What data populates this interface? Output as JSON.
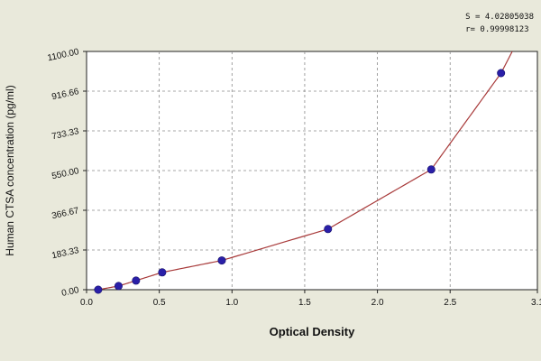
{
  "chart_data": {
    "type": "scatter",
    "xlabel": "Optical Density",
    "ylabel": "Human  CTSA concentration (pg/ml)",
    "xlim": [
      0,
      3.1
    ],
    "ylim": [
      0,
      1100
    ],
    "x_ticks": [
      "0.0",
      "0.5",
      "1.0",
      "1.5",
      "2.0",
      "2.5",
      "3.1"
    ],
    "y_ticks": [
      "0.00",
      "183.33",
      "366.67",
      "550.00",
      "733.33",
      "916.66",
      "1100.00"
    ],
    "grid": true,
    "points": [
      {
        "x": 0.08,
        "y": 0
      },
      {
        "x": 0.22,
        "y": 17
      },
      {
        "x": 0.34,
        "y": 42
      },
      {
        "x": 0.52,
        "y": 80
      },
      {
        "x": 0.93,
        "y": 135
      },
      {
        "x": 1.66,
        "y": 280
      },
      {
        "x": 2.37,
        "y": 555
      },
      {
        "x": 2.85,
        "y": 1000
      }
    ],
    "fit_stats": [
      "S = 4.02805038",
      "r= 0.99998123"
    ],
    "colors": {
      "points": "#2a1fa8",
      "curve": "#a83a3a",
      "grid": "#8a8a8a"
    }
  }
}
